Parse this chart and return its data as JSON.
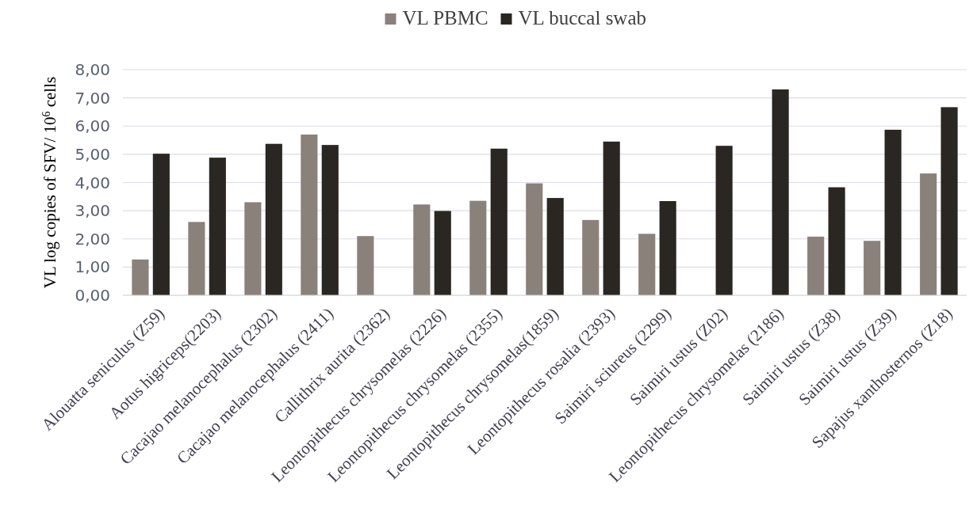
{
  "chart_data": {
    "type": "bar",
    "ylabel": "VL log copies of SFV/ 10$^{6}$ cells",
    "categories": [
      "Alouatta  seniculus (Z59)",
      "Aotus higriceps(2203)",
      "Cacajao melanocephalus (2302)",
      "Cacajao melanocephalus (2411)",
      "Callithrix aurita (2362)",
      "Leontopithecus chrysomelas (2226)",
      "Leontopithecus chrysomelas (2355)",
      "Leontopithecus chrysomelas(1859)",
      "Leontopithecus rosalia (2393)",
      "Saimiri sciureus (2299)",
      "Saimiri ustus (Z02)",
      "Leontopithecus chrysomelas (2186)",
      "Saimiri ustus (Z38)",
      "Saimiri ustus (Z39)",
      "Sapajus xanthosternos (Z18)"
    ],
    "series": [
      {
        "name": "VL PBMC",
        "color": "#8a817b",
        "values": [
          1.27,
          2.6,
          3.3,
          5.7,
          2.1,
          3.22,
          3.35,
          3.97,
          2.67,
          2.18,
          null,
          null,
          2.08,
          1.93,
          4.32
        ]
      },
      {
        "name": "VL buccal swab",
        "color": "#2a2622",
        "values": [
          5.02,
          4.88,
          5.37,
          5.33,
          null,
          2.99,
          5.2,
          3.45,
          5.45,
          3.34,
          5.3,
          7.3,
          3.83,
          5.87,
          6.67
        ]
      }
    ],
    "ylim": [
      0,
      8
    ],
    "yticks": [
      {
        "value": 0,
        "label": "0,00"
      },
      {
        "value": 1,
        "label": "1,00"
      },
      {
        "value": 2,
        "label": "2,00"
      },
      {
        "value": 3,
        "label": "3,00"
      },
      {
        "value": 4,
        "label": "4,00"
      },
      {
        "value": 5,
        "label": "5,00"
      },
      {
        "value": 6,
        "label": "6,00"
      },
      {
        "value": 7,
        "label": "7,00"
      },
      {
        "value": 8,
        "label": "8,00"
      }
    ],
    "grid": "y",
    "legend": "top"
  }
}
